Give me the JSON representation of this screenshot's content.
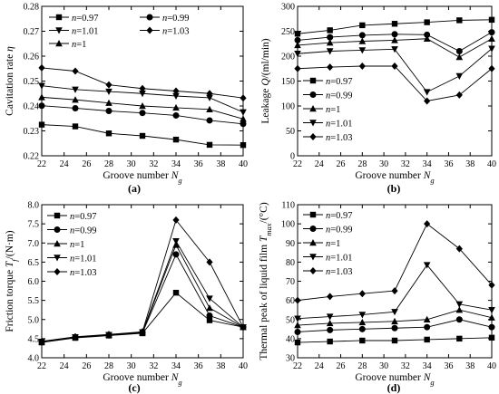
{
  "chart_data": [
    {
      "type": "line",
      "panel_label": "(a)",
      "xlabel": "Groove number N_g",
      "ylabel": "Cavitation rate η",
      "xlim": [
        22,
        40
      ],
      "ylim": [
        0.22,
        0.28
      ],
      "xticks": [
        22,
        24,
        26,
        28,
        30,
        32,
        34,
        36,
        38,
        40
      ],
      "yticks": [
        0.22,
        0.23,
        0.24,
        0.25,
        0.26,
        0.27,
        0.28
      ],
      "ytick_decimals": 2,
      "legend_layout": "top-2col",
      "x": [
        22,
        25,
        28,
        31,
        34,
        37,
        40
      ],
      "series": [
        {
          "name": "n=0.97",
          "marker": "square",
          "values": [
            0.2325,
            0.2318,
            0.229,
            0.228,
            0.2265,
            0.2244,
            0.2243
          ]
        },
        {
          "name": "n=0.99",
          "marker": "circle",
          "values": [
            0.2401,
            0.2391,
            0.238,
            0.2372,
            0.2362,
            0.2342,
            0.2328
          ]
        },
        {
          "name": "n=1.01",
          "marker": "triangle-down",
          "values": [
            0.2481,
            0.2466,
            0.2458,
            0.245,
            0.244,
            0.2433,
            0.2375
          ]
        },
        {
          "name": "n=1.03",
          "marker": "diamond",
          "values": [
            0.2553,
            0.254,
            0.2485,
            0.247,
            0.246,
            0.245,
            0.2432
          ]
        },
        {
          "name": "n=1",
          "marker": "triangle-up",
          "values": [
            0.2435,
            0.2425,
            0.2412,
            0.24,
            0.2393,
            0.2386,
            0.2348
          ]
        }
      ]
    },
    {
      "type": "line",
      "panel_label": "(b)",
      "xlabel": "Groove number N_g",
      "ylabel": "Leakage Q/(ml/min)",
      "xlim": [
        22,
        40
      ],
      "ylim": [
        0,
        300
      ],
      "xticks": [
        22,
        24,
        26,
        28,
        30,
        32,
        34,
        36,
        38,
        40
      ],
      "yticks": [
        0,
        50,
        100,
        150,
        200,
        250,
        300
      ],
      "ytick_decimals": 0,
      "legend_layout": "left-col",
      "x": [
        22,
        25,
        28,
        31,
        34,
        37,
        40
      ],
      "series": [
        {
          "name": "n=0.97",
          "marker": "square",
          "values": [
            245,
            252,
            262,
            265,
            268,
            272,
            273
          ]
        },
        {
          "name": "n=0.99",
          "marker": "circle",
          "values": [
            232,
            238,
            242,
            244,
            243,
            210,
            248
          ]
        },
        {
          "name": "n=1",
          "marker": "triangle-up",
          "values": [
            222,
            227,
            230,
            232,
            235,
            198,
            235
          ]
        },
        {
          "name": "n=1.01",
          "marker": "triangle-down",
          "values": [
            205,
            210,
            212,
            214,
            128,
            160,
            215
          ]
        },
        {
          "name": "n=1.03",
          "marker": "diamond",
          "values": [
            175,
            178,
            180,
            180,
            110,
            122,
            175
          ]
        }
      ]
    },
    {
      "type": "line",
      "panel_label": "(c)",
      "xlabel": "Groove number N_g",
      "ylabel": "Friction torque T_f/(N·m)",
      "xlim": [
        22,
        40
      ],
      "ylim": [
        4.0,
        8.0
      ],
      "xticks": [
        22,
        24,
        26,
        28,
        30,
        32,
        34,
        36,
        38,
        40
      ],
      "yticks": [
        4.0,
        4.5,
        5.0,
        5.5,
        6.0,
        6.5,
        7.0,
        7.5,
        8.0
      ],
      "ytick_decimals": 1,
      "legend_layout": "left-col",
      "x": [
        22,
        25,
        28,
        31,
        34,
        37,
        40
      ],
      "series": [
        {
          "name": "n=0.97",
          "marker": "square",
          "values": [
            4.4,
            4.52,
            4.58,
            4.64,
            5.7,
            4.98,
            4.8
          ]
        },
        {
          "name": "n=0.99",
          "marker": "circle",
          "values": [
            4.41,
            4.53,
            4.59,
            4.65,
            6.7,
            5.1,
            4.8
          ]
        },
        {
          "name": "n=1",
          "marker": "triangle-up",
          "values": [
            4.42,
            4.54,
            4.6,
            4.66,
            6.95,
            5.3,
            4.8
          ]
        },
        {
          "name": "n=1.01",
          "marker": "triangle-down",
          "values": [
            4.42,
            4.54,
            4.6,
            4.67,
            7.05,
            5.55,
            4.8
          ]
        },
        {
          "name": "n=1.03",
          "marker": "diamond",
          "values": [
            4.43,
            4.55,
            4.61,
            4.68,
            7.6,
            6.5,
            4.8
          ]
        }
      ]
    },
    {
      "type": "line",
      "panel_label": "(d)",
      "xlabel": "Groove number N_g",
      "ylabel": "Thermal peak of liquid film T_max/(°C)",
      "xlim": [
        22,
        40
      ],
      "ylim": [
        30,
        110
      ],
      "xticks": [
        22,
        24,
        26,
        28,
        30,
        32,
        34,
        36,
        38,
        40
      ],
      "yticks": [
        30,
        40,
        50,
        60,
        70,
        80,
        90,
        100,
        110
      ],
      "ytick_decimals": 0,
      "legend_layout": "left-col",
      "x": [
        22,
        25,
        28,
        31,
        34,
        37,
        40
      ],
      "series": [
        {
          "name": "n=0.97",
          "marker": "square",
          "values": [
            38,
            38.5,
            39,
            39,
            39.5,
            40,
            40.5
          ]
        },
        {
          "name": "n=0.99",
          "marker": "circle",
          "values": [
            43.5,
            44.5,
            45,
            45.5,
            46,
            50,
            46
          ]
        },
        {
          "name": "n=1",
          "marker": "triangle-up",
          "values": [
            47,
            48,
            48.5,
            49,
            50,
            55,
            51
          ]
        },
        {
          "name": "n=1.01",
          "marker": "triangle-down",
          "values": [
            50.5,
            51.5,
            52.5,
            54,
            78.5,
            58,
            55
          ]
        },
        {
          "name": "n=1.03",
          "marker": "diamond",
          "values": [
            60,
            62,
            63.5,
            65,
            100,
            87,
            68
          ]
        }
      ]
    }
  ]
}
